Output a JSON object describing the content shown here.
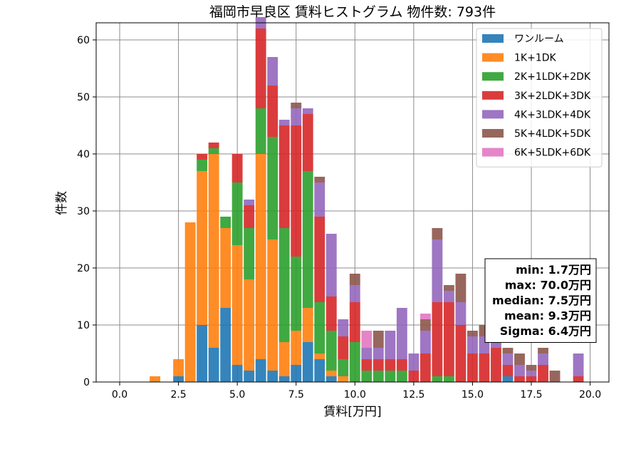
{
  "chart_data": {
    "type": "bar",
    "stacked": true,
    "title": "福岡市早良区 賃料ヒストグラム  物件数: 793件",
    "xlabel": "賃料[万円]",
    "ylabel": "件数",
    "xlim": [
      -1.0,
      20.8
    ],
    "ylim": [
      0,
      63
    ],
    "xticks": [
      0.0,
      2.5,
      5.0,
      7.5,
      10.0,
      12.5,
      15.0,
      17.5,
      20.0
    ],
    "xtick_labels": [
      "0.0",
      "2.5",
      "5.0",
      "7.5",
      "10.0",
      "12.5",
      "15.0",
      "17.5",
      "20.0"
    ],
    "yticks": [
      0,
      10,
      20,
      30,
      40,
      50,
      60
    ],
    "ytick_labels": [
      "0",
      "10",
      "20",
      "30",
      "40",
      "50",
      "60"
    ],
    "grid": true,
    "legend_position": "top-right",
    "bin_width": 0.5,
    "bin_start": [
      1.25,
      2.25,
      2.75,
      3.25,
      3.75,
      4.25,
      4.75,
      5.25,
      5.75,
      6.25,
      6.75,
      7.25,
      7.75,
      8.25,
      8.75,
      9.25,
      9.75,
      10.25,
      10.75,
      11.25,
      11.75,
      12.25,
      12.75,
      13.25,
      13.75,
      14.25,
      14.75,
      15.25,
      15.75,
      16.25,
      16.75,
      17.25,
      17.75,
      18.25,
      19.25
    ],
    "series": [
      {
        "name": "ワンルーム",
        "color": "#1f77b4",
        "values": [
          0,
          1,
          0,
          10,
          6,
          13,
          3,
          2,
          4,
          2,
          1,
          3,
          7,
          4,
          1,
          0,
          0,
          0,
          0,
          0,
          0,
          0,
          0,
          0,
          0,
          0,
          0,
          0,
          0,
          1,
          0,
          0,
          0,
          0,
          0
        ]
      },
      {
        "name": "1K+1DK",
        "color": "#ff7f0e",
        "values": [
          1,
          3,
          28,
          27,
          34,
          14,
          21,
          16,
          36,
          23,
          6,
          6,
          6,
          1,
          1,
          1,
          0,
          0,
          0,
          0,
          0,
          0,
          0,
          0,
          0,
          0,
          0,
          0,
          0,
          0,
          0,
          0,
          0,
          0,
          0
        ]
      },
      {
        "name": "2K+1LDK+2DK",
        "color": "#2ca02c",
        "values": [
          0,
          0,
          0,
          2,
          1,
          2,
          11,
          9,
          8,
          18,
          20,
          13,
          24,
          9,
          7,
          3,
          7,
          2,
          2,
          2,
          2,
          0,
          0,
          1,
          1,
          0,
          0,
          0,
          0,
          0,
          0,
          0,
          0,
          0,
          0
        ]
      },
      {
        "name": "3K+2LDK+3DK",
        "color": "#d62728",
        "values": [
          0,
          0,
          0,
          1,
          1,
          0,
          5,
          4,
          14,
          9,
          18,
          23,
          10,
          15,
          6,
          4,
          7,
          2,
          2,
          2,
          2,
          2,
          5,
          13,
          13,
          10,
          5,
          5,
          6,
          2,
          1,
          1,
          3,
          0,
          1
        ]
      },
      {
        "name": "4K+3LDK+4DK",
        "color": "#9467bd",
        "values": [
          0,
          0,
          0,
          0,
          0,
          0,
          0,
          1,
          2,
          5,
          1,
          3,
          1,
          6,
          11,
          3,
          3,
          2,
          2,
          5,
          9,
          3,
          4,
          11,
          2,
          4,
          3,
          3,
          3,
          2,
          2,
          1,
          2,
          0,
          4
        ]
      },
      {
        "name": "5K+4LDK+5DK",
        "color": "#8c564b",
        "values": [
          0,
          0,
          0,
          0,
          0,
          0,
          0,
          0,
          0,
          0,
          0,
          1,
          0,
          1,
          0,
          0,
          2,
          0,
          3,
          0,
          0,
          0,
          2,
          2,
          1,
          5,
          1,
          2,
          1,
          1,
          2,
          1,
          1,
          2,
          0
        ]
      },
      {
        "name": "6K+5LDK+6DK",
        "color": "#e377c2",
        "values": [
          0,
          0,
          0,
          0,
          0,
          0,
          0,
          0,
          0,
          0,
          0,
          0,
          0,
          0,
          0,
          0,
          0,
          3,
          0,
          0,
          0,
          0,
          1,
          0,
          0,
          0,
          0,
          0,
          0,
          0,
          0,
          0,
          0,
          0,
          0
        ]
      }
    ],
    "stats_box": [
      "min: 1.7万円",
      "max: 70.0万円",
      "median: 7.5万円",
      "mean: 9.3万円",
      "Sigma: 6.4万円"
    ]
  }
}
